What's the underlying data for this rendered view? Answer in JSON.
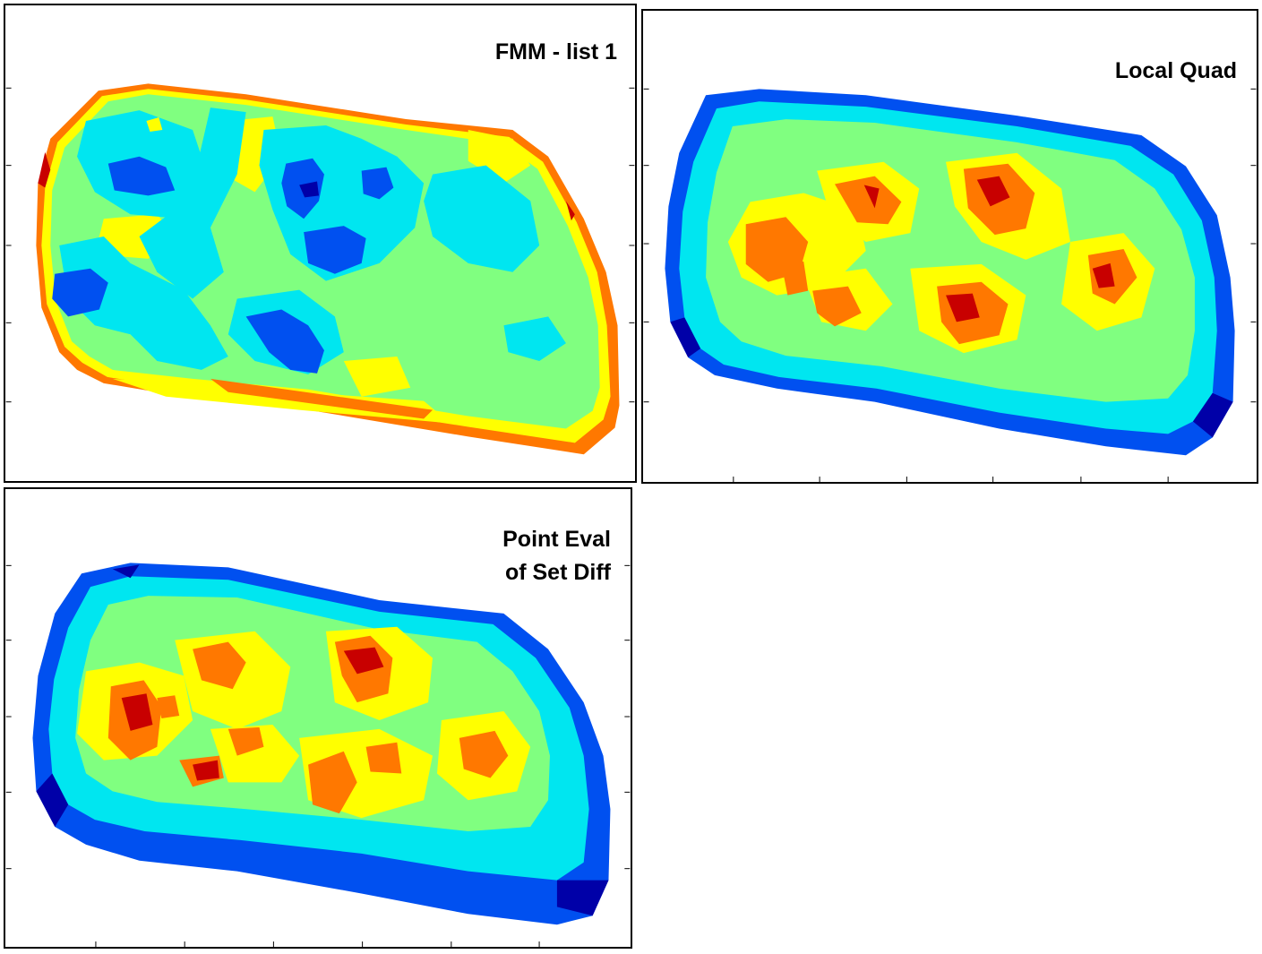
{
  "panels": [
    {
      "title_lines": [
        "FMM - list 1"
      ],
      "colormap": [
        "#0000a8",
        "#0050f0",
        "#00e6f0",
        "#80ff80",
        "#ffff00",
        "#ff7800",
        "#c80000"
      ]
    },
    {
      "title_lines": [
        "Local Quad"
      ],
      "colormap": [
        "#0000a8",
        "#0050f0",
        "#00e6f0",
        "#80ff80",
        "#ffff00",
        "#ff7800",
        "#c80000"
      ]
    },
    {
      "title_lines": [
        "Point Eval",
        "of Set Diff"
      ],
      "colormap": [
        "#0000a8",
        "#0050f0",
        "#00e6f0",
        "#80ff80",
        "#ffff00",
        "#ff7800",
        "#c80000"
      ]
    }
  ]
}
